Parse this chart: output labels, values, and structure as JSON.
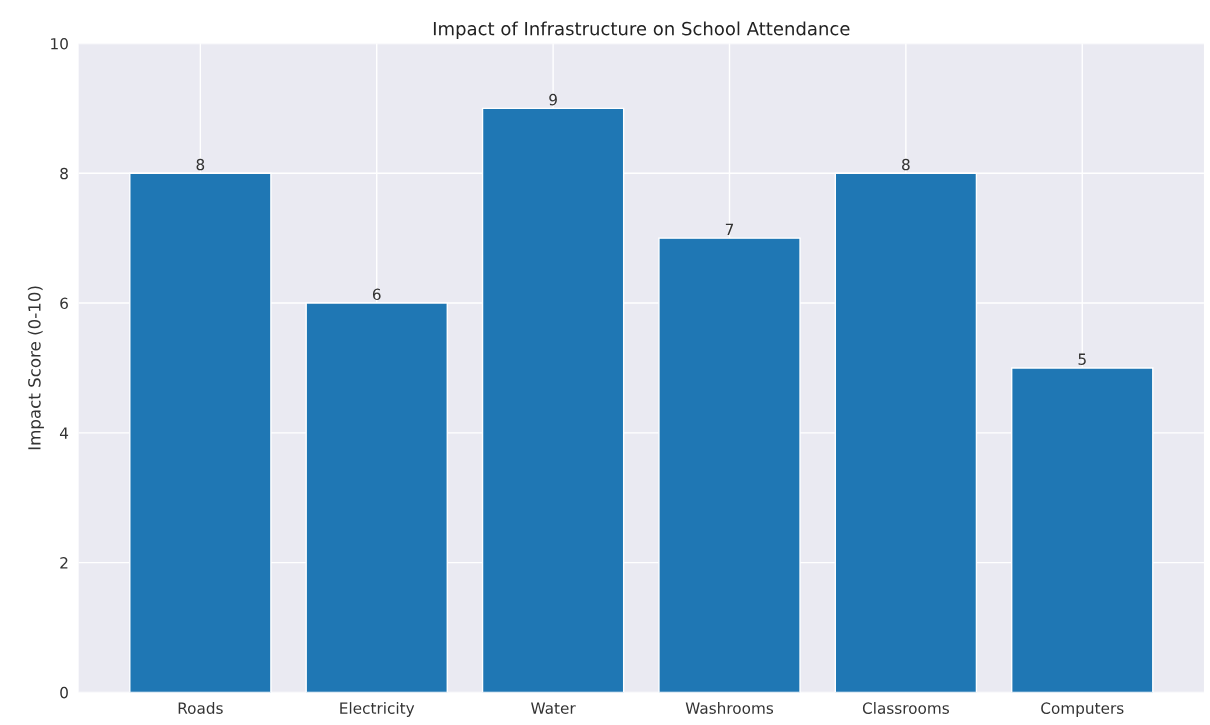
{
  "chart_data": {
    "type": "bar",
    "title": "Impact of Infrastructure on School Attendance",
    "ylabel": "Impact Score (0-10)",
    "categories": [
      "Roads",
      "Electricity",
      "Water",
      "Washrooms",
      "Classrooms",
      "Computers"
    ],
    "values": [
      8,
      6,
      9,
      7,
      8,
      5
    ],
    "color": "#1f77b4",
    "ylim": [
      0,
      10
    ],
    "yticks": [
      0,
      2,
      4,
      6,
      8,
      10
    ],
    "grid": true,
    "data_labels": true
  }
}
